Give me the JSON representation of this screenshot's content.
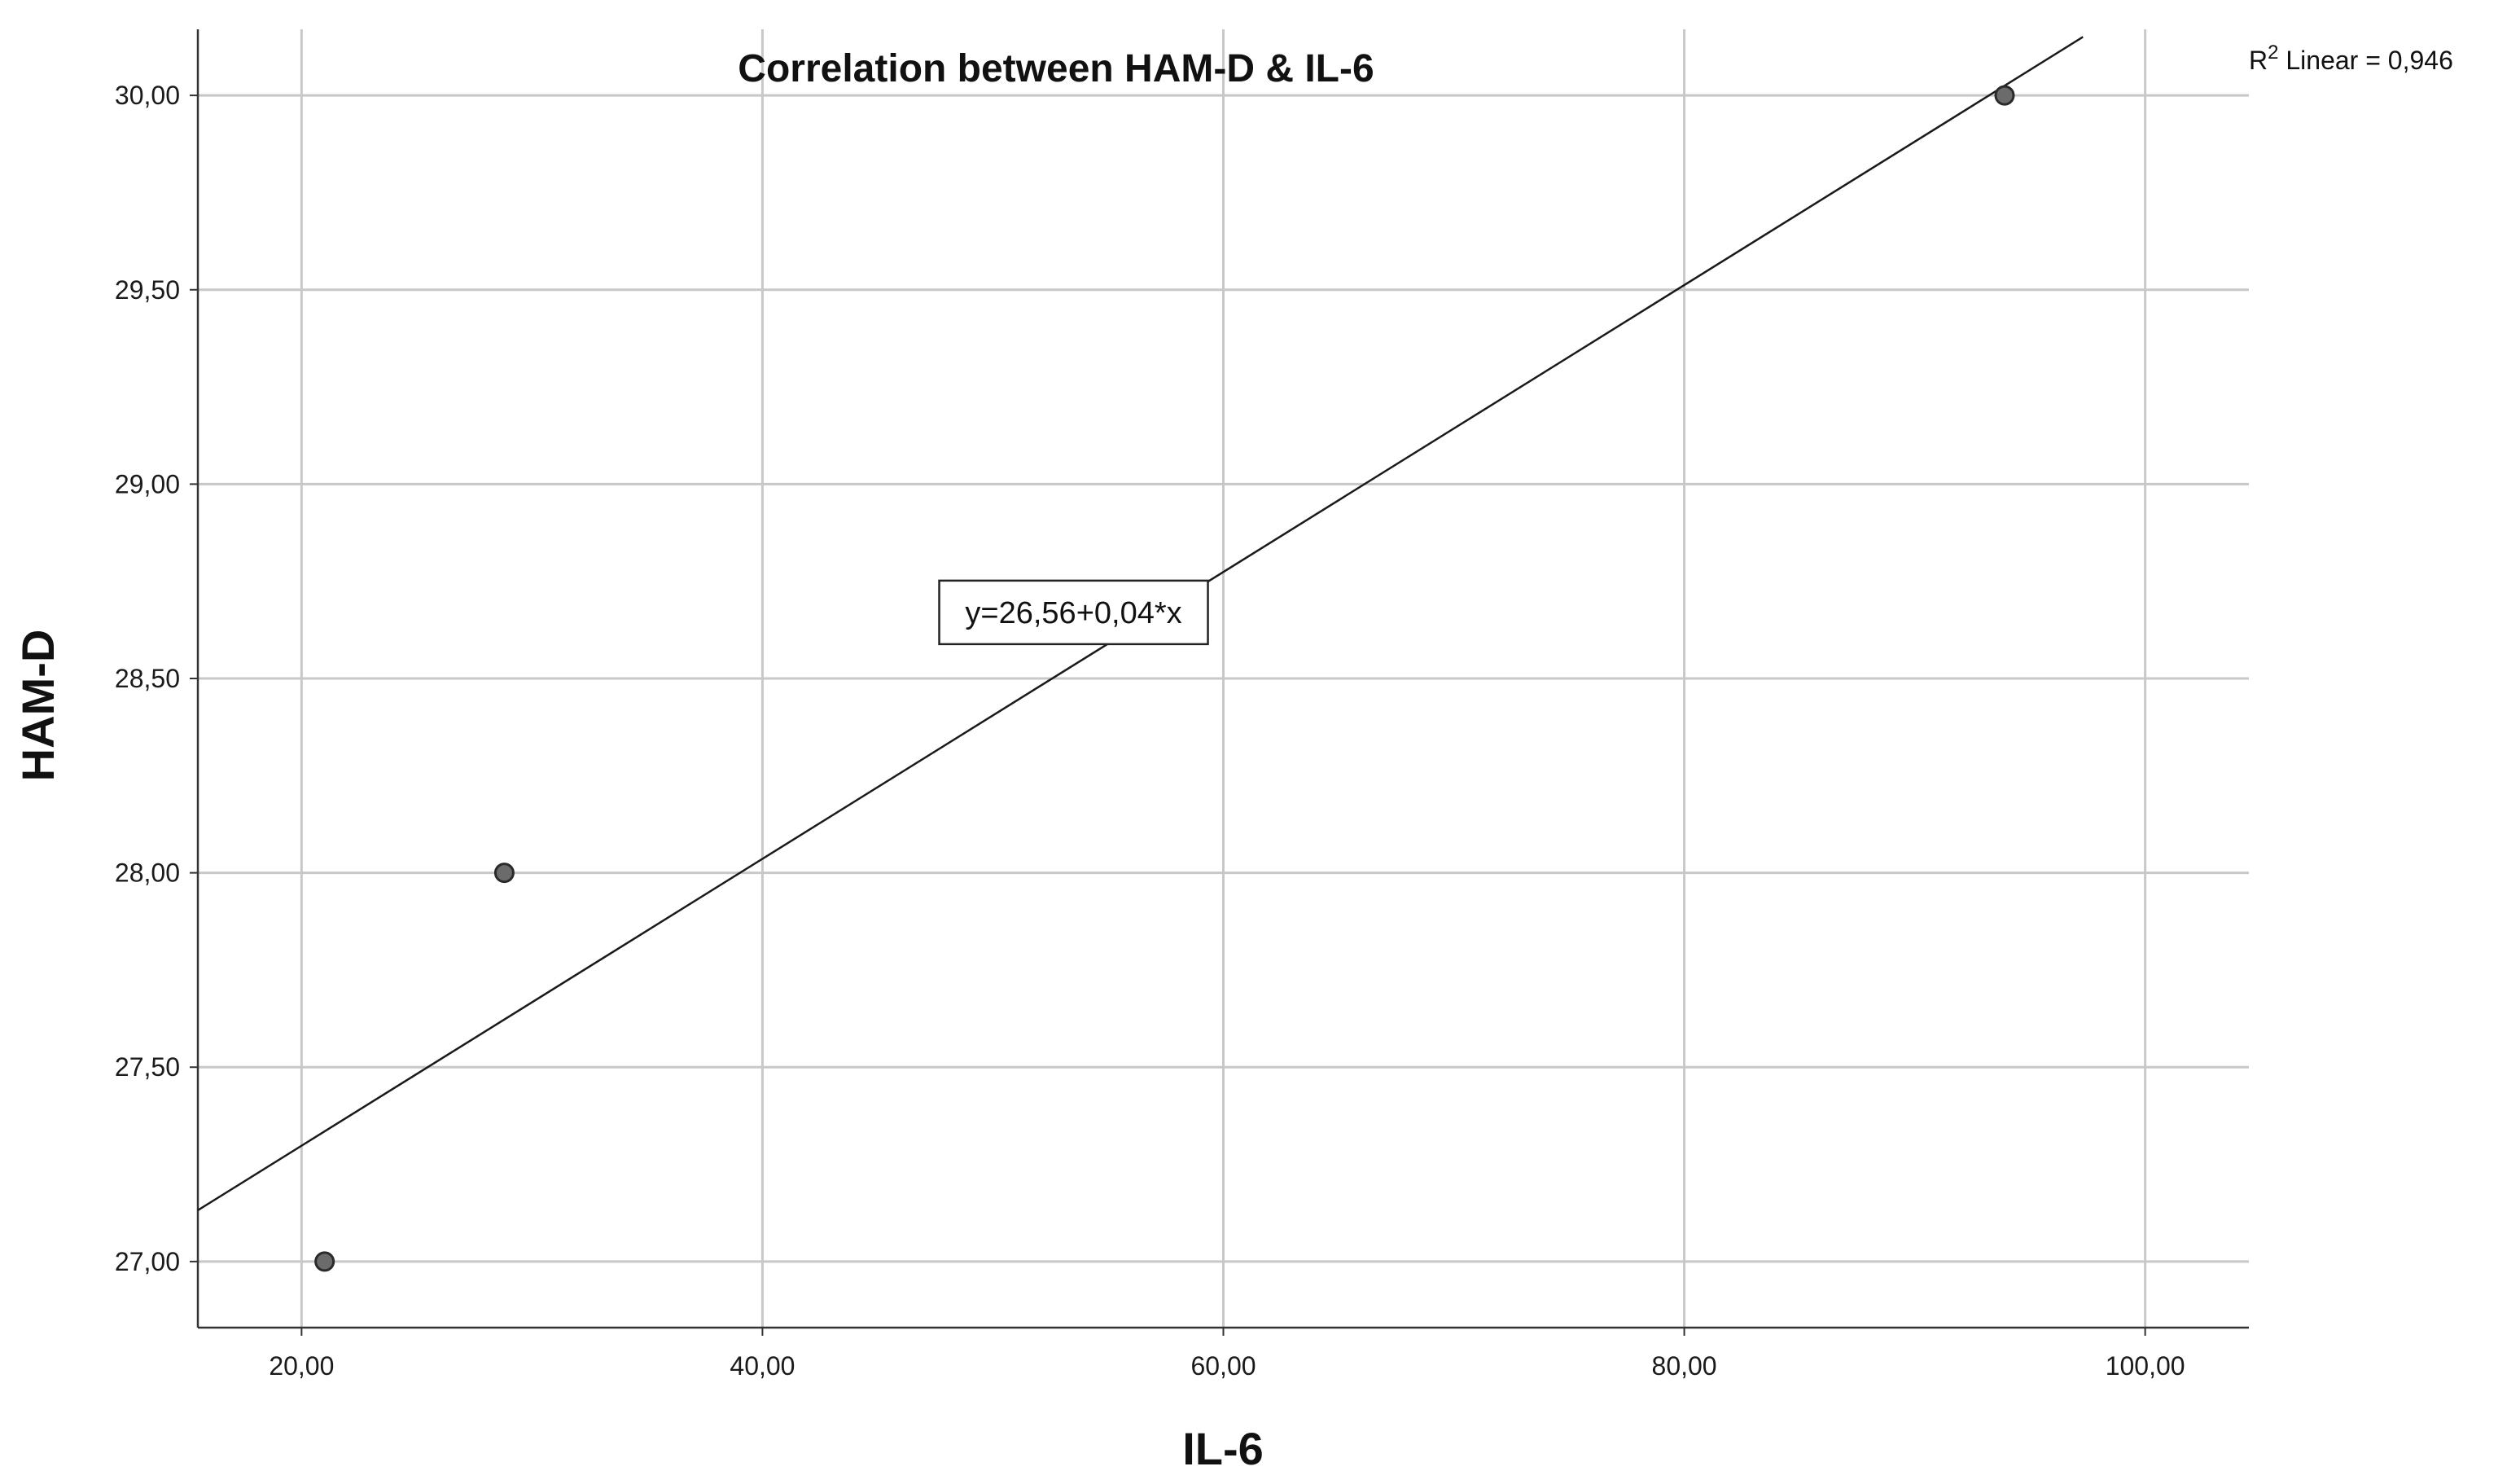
{
  "chart_data": {
    "type": "scatter",
    "title": "Correlation between HAM-D & IL-6",
    "xlabel": "IL-6",
    "ylabel": "HAM-D",
    "xlim": [
      15.5,
      104.5
    ],
    "ylim": [
      26.83,
      30.17
    ],
    "x_ticks": [
      20,
      40,
      60,
      80,
      100
    ],
    "y_ticks": [
      27,
      27.5,
      28,
      28.5,
      29,
      29.5,
      30
    ],
    "x_tick_labels": [
      "20,00",
      "40,00",
      "60,00",
      "80,00",
      "100,00"
    ],
    "y_tick_labels": [
      "27,00",
      "27,50",
      "28,00",
      "28,50",
      "29,00",
      "29,50",
      "30,00"
    ],
    "grid": true,
    "series": [
      {
        "points": [
          {
            "x": 21.0,
            "y": 27.0
          },
          {
            "x": 28.8,
            "y": 28.0
          },
          {
            "x": 93.9,
            "y": 30.0
          }
        ]
      }
    ],
    "fit_line": {
      "intercept": 26.56,
      "slope": 0.0369,
      "x_range": [
        15.5,
        97.3
      ],
      "equation_label": "y=26,56+0,04*x",
      "label_anchor": {
        "x": 53.5,
        "y": 28.67
      }
    },
    "r2_label": {
      "prefix": "R",
      "superscript": "2",
      "text": " Linear = 0,946"
    },
    "colors": {
      "point_fill": "#6b6b6b",
      "point_stroke": "#2a2a2a",
      "line": "#1a1a1a",
      "grid": "#c8c8c8",
      "axis": "#333333"
    }
  }
}
